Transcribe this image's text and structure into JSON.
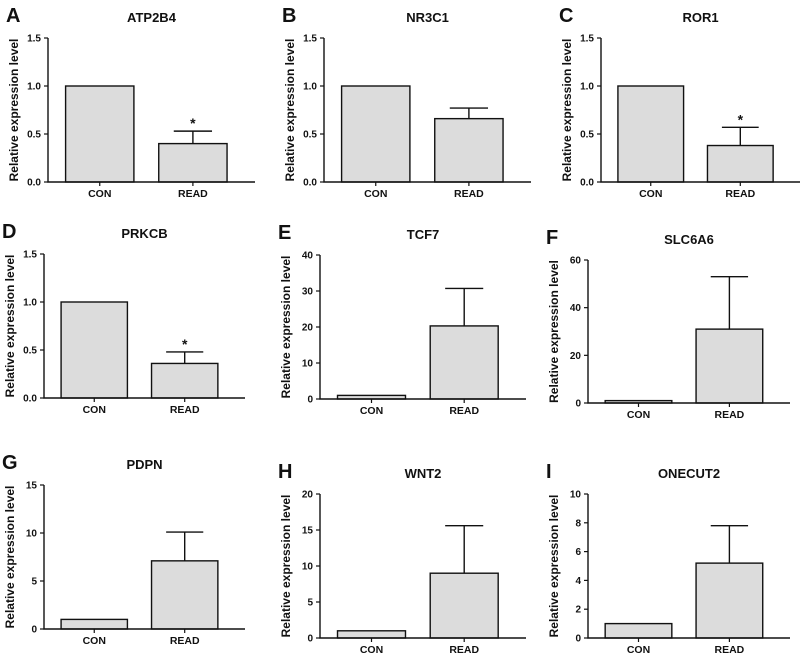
{
  "colors": {
    "bar_fill": "#dcdcdc",
    "axis": "#111111",
    "background": "#ffffff"
  },
  "chart_data": [
    {
      "panel": "A",
      "title": "ATP2B4",
      "type": "bar",
      "ylabel": "Relative expression level",
      "xlabel": "",
      "categories": [
        "CON",
        "READ"
      ],
      "values": [
        1.0,
        0.4
      ],
      "errors": [
        0,
        0.13
      ],
      "significance": [
        "",
        "*"
      ],
      "ylim": [
        0,
        1.5
      ],
      "yticks": [
        0.0,
        0.5,
        1.0,
        1.5
      ],
      "ytick_labels": [
        "0.0",
        "0.5",
        "1.0",
        "1.5"
      ]
    },
    {
      "panel": "B",
      "title": "NR3C1",
      "type": "bar",
      "ylabel": "Relative expression level",
      "xlabel": "",
      "categories": [
        "CON",
        "READ"
      ],
      "values": [
        1.0,
        0.66
      ],
      "errors": [
        0,
        0.11
      ],
      "significance": [
        "",
        ""
      ],
      "ylim": [
        0,
        1.5
      ],
      "yticks": [
        0.0,
        0.5,
        1.0,
        1.5
      ],
      "ytick_labels": [
        "0.0",
        "0.5",
        "1.0",
        "1.5"
      ]
    },
    {
      "panel": "C",
      "title": "ROR1",
      "type": "bar",
      "ylabel": "Relative expression level",
      "xlabel": "",
      "categories": [
        "CON",
        "READ"
      ],
      "values": [
        1.0,
        0.38
      ],
      "errors": [
        0,
        0.19
      ],
      "significance": [
        "",
        "*"
      ],
      "ylim": [
        0,
        1.5
      ],
      "yticks": [
        0.0,
        0.5,
        1.0,
        1.5
      ],
      "ytick_labels": [
        "0.0",
        "0.5",
        "1.0",
        "1.5"
      ]
    },
    {
      "panel": "D",
      "title": "PRKCB",
      "type": "bar",
      "ylabel": "Relative expression level",
      "xlabel": "",
      "categories": [
        "CON",
        "READ"
      ],
      "values": [
        1.0,
        0.36
      ],
      "errors": [
        0,
        0.12
      ],
      "significance": [
        "",
        "*"
      ],
      "ylim": [
        0,
        1.5
      ],
      "yticks": [
        0.0,
        0.5,
        1.0,
        1.5
      ],
      "ytick_labels": [
        "0.0",
        "0.5",
        "1.0",
        "1.5"
      ]
    },
    {
      "panel": "E",
      "title": "TCF7",
      "type": "bar",
      "ylabel": "Relative expression level",
      "xlabel": "",
      "categories": [
        "CON",
        "READ"
      ],
      "values": [
        1.0,
        20.3
      ],
      "errors": [
        0,
        10.4
      ],
      "significance": [
        "",
        ""
      ],
      "ylim": [
        0,
        40
      ],
      "yticks": [
        0,
        10,
        20,
        30,
        40
      ],
      "ytick_labels": [
        "0",
        "10",
        "20",
        "30",
        "40"
      ]
    },
    {
      "panel": "F",
      "title": "SLC6A6",
      "type": "bar",
      "ylabel": "Relative expression level",
      "xlabel": "",
      "categories": [
        "CON",
        "READ"
      ],
      "values": [
        1.0,
        31.0
      ],
      "errors": [
        0,
        22.0
      ],
      "significance": [
        "",
        ""
      ],
      "ylim": [
        0,
        60
      ],
      "yticks": [
        0,
        20,
        40,
        60
      ],
      "ytick_labels": [
        "0",
        "20",
        "40",
        "60"
      ]
    },
    {
      "panel": "G",
      "title": "PDPN",
      "type": "bar",
      "ylabel": "Relative expression level",
      "xlabel": "",
      "categories": [
        "CON",
        "READ"
      ],
      "values": [
        1.0,
        7.1
      ],
      "errors": [
        0,
        3.0
      ],
      "significance": [
        "",
        ""
      ],
      "ylim": [
        0,
        15
      ],
      "yticks": [
        0,
        5,
        10,
        15
      ],
      "ytick_labels": [
        "0",
        "5",
        "10",
        "15"
      ]
    },
    {
      "panel": "H",
      "title": "WNT2",
      "type": "bar",
      "ylabel": "Relative expression level",
      "xlabel": "",
      "categories": [
        "CON",
        "READ"
      ],
      "values": [
        1.0,
        9.0
      ],
      "errors": [
        0,
        6.6
      ],
      "significance": [
        "",
        ""
      ],
      "ylim": [
        0,
        20
      ],
      "yticks": [
        0,
        5,
        10,
        15,
        20
      ],
      "ytick_labels": [
        "0",
        "5",
        "10",
        "15",
        "20"
      ]
    },
    {
      "panel": "I",
      "title": "ONECUT2",
      "type": "bar",
      "ylabel": "Relative expression level",
      "xlabel": "",
      "categories": [
        "CON",
        "READ"
      ],
      "values": [
        1.0,
        5.2
      ],
      "errors": [
        0,
        2.6
      ],
      "significance": [
        "",
        ""
      ],
      "ylim": [
        0,
        10
      ],
      "yticks": [
        0,
        2,
        4,
        6,
        8,
        10
      ],
      "ytick_labels": [
        "0",
        "2",
        "4",
        "6",
        "8",
        "10"
      ]
    }
  ]
}
